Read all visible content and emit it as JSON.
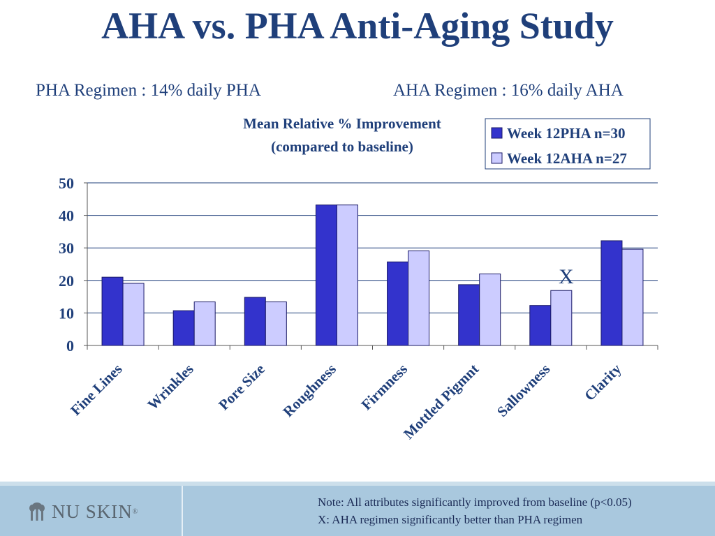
{
  "slide": {
    "title": "AHA vs. PHA Anti-Aging Study",
    "subtitle_left": "PHA Regimen : 14% daily PHA",
    "subtitle_right": "AHA Regimen : 16% daily AHA"
  },
  "chart_data": {
    "type": "bar",
    "title": "Mean Relative % Improvement",
    "subtitle": "(compared to baseline)",
    "categories": [
      "Fine Lines",
      "Wrinkles",
      "Pore Size",
      "Roughness",
      "Firmness",
      "Mottled Pigmnt",
      "Sallowness",
      "Clarity"
    ],
    "series": [
      {
        "name": "Week 12PHA n=30",
        "values": [
          21,
          10.7,
          14.8,
          43.2,
          25.7,
          18.7,
          12.3,
          32.2
        ],
        "color": "#3333cc"
      },
      {
        "name": "Week 12AHA n=27",
        "values": [
          19.1,
          13.4,
          13.4,
          43.2,
          29.1,
          22,
          16.9,
          29.6
        ],
        "color": "#ccccff"
      }
    ],
    "ylim": [
      0,
      50
    ],
    "yticks": [
      "0",
      "10",
      "20",
      "30",
      "40",
      "50"
    ],
    "grid": true,
    "legend_position": "top-right",
    "annotations": [
      {
        "category": "Sallowness",
        "text": "X"
      }
    ]
  },
  "footer": {
    "logo_text": "NU SKIN",
    "logo_mark": "®",
    "note_line1": "Note: All attributes significantly improved from baseline (p<0.05)",
    "note_line2": "X: AHA regimen significantly better than PHA regimen"
  },
  "colors": {
    "title": "#1f3f7a",
    "footer_bg": "#a9c8de",
    "axis_text": "#1f3f7a"
  }
}
